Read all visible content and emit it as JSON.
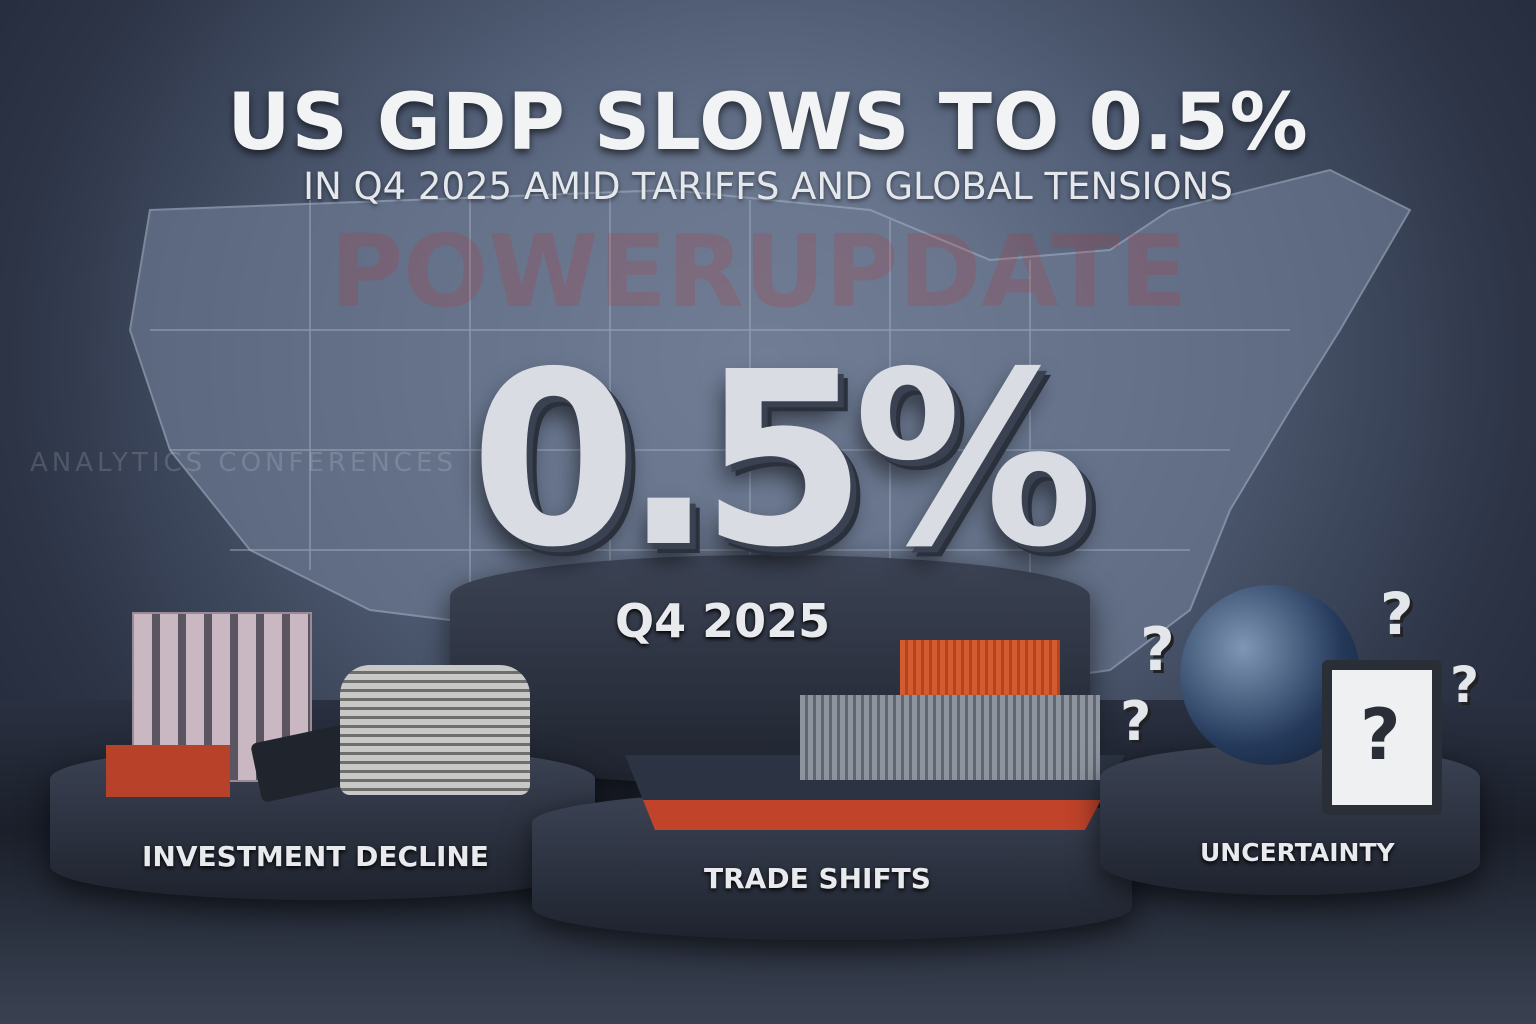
{
  "headline": "US GDP SLOWS TO 0.5%",
  "subheadline": "IN Q4 2025 AMID TARIFFS AND GLOBAL TENSIONS",
  "figure": {
    "value": "0.5%",
    "period": "Q4 2025"
  },
  "pillars": [
    {
      "label": "INVESTMENT DECLINE"
    },
    {
      "label": "TRADE SHIFTS"
    },
    {
      "label": "UNCERTAINTY"
    }
  ],
  "watermark": {
    "main": "POWERUPDATE",
    "secondary": "ANALYTICS CONFERENCES"
  },
  "colors": {
    "background": "#3b4558",
    "container": "#d45a2f",
    "text": "#f2f3f5"
  }
}
